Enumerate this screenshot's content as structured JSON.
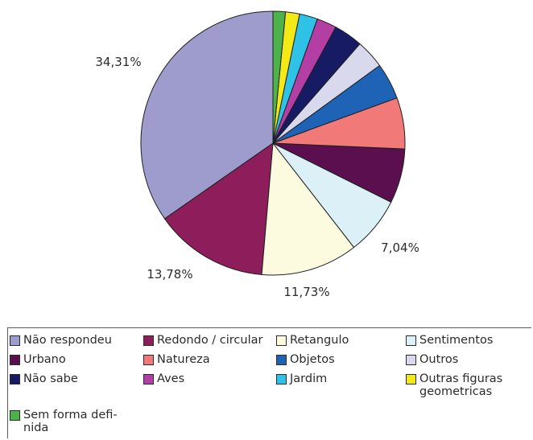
{
  "chart_data": {
    "type": "pie",
    "slices": [
      {
        "label": "Não respondeu",
        "value": 34.31,
        "color": "#9d9ccc",
        "data_label": "34,31%"
      },
      {
        "label": "Redondo / circular",
        "value": 13.78,
        "color": "#8d1e5b",
        "data_label": "13,78%"
      },
      {
        "label": "Retangulo",
        "value": 11.73,
        "color": "#fcfadf",
        "data_label": "11,73%"
      },
      {
        "label": "Sentimentos",
        "value": 7.04,
        "color": "#dbf0f7",
        "data_label": "7,04%"
      },
      {
        "label": "Urbano",
        "value": 6.6,
        "color": "#5c0f4e",
        "data_label": ""
      },
      {
        "label": "Natureza",
        "value": 6.2,
        "color": "#f17a78",
        "data_label": ""
      },
      {
        "label": "Objetos",
        "value": 4.4,
        "color": "#1e63b6",
        "data_label": ""
      },
      {
        "label": "Outros",
        "value": 3.5,
        "color": "#d9d9ee",
        "data_label": ""
      },
      {
        "label": "Não sabe",
        "value": 3.5,
        "color": "#161b63",
        "data_label": ""
      },
      {
        "label": "Aves",
        "value": 2.4,
        "color": "#b33fa4",
        "data_label": ""
      },
      {
        "label": "Jardim",
        "value": 2.2,
        "color": "#2fc1e6",
        "data_label": ""
      },
      {
        "label": "Outras figuras\ngeometricas",
        "value": 1.7,
        "color": "#f2e916",
        "data_label": ""
      },
      {
        "label": "Sem forma defi-\nnida",
        "value": 1.5,
        "color": "#4db24a",
        "data_label": ""
      }
    ],
    "legend_position": "bottom",
    "start_angle": "12 o'clock",
    "direction": "counterclockwise"
  }
}
